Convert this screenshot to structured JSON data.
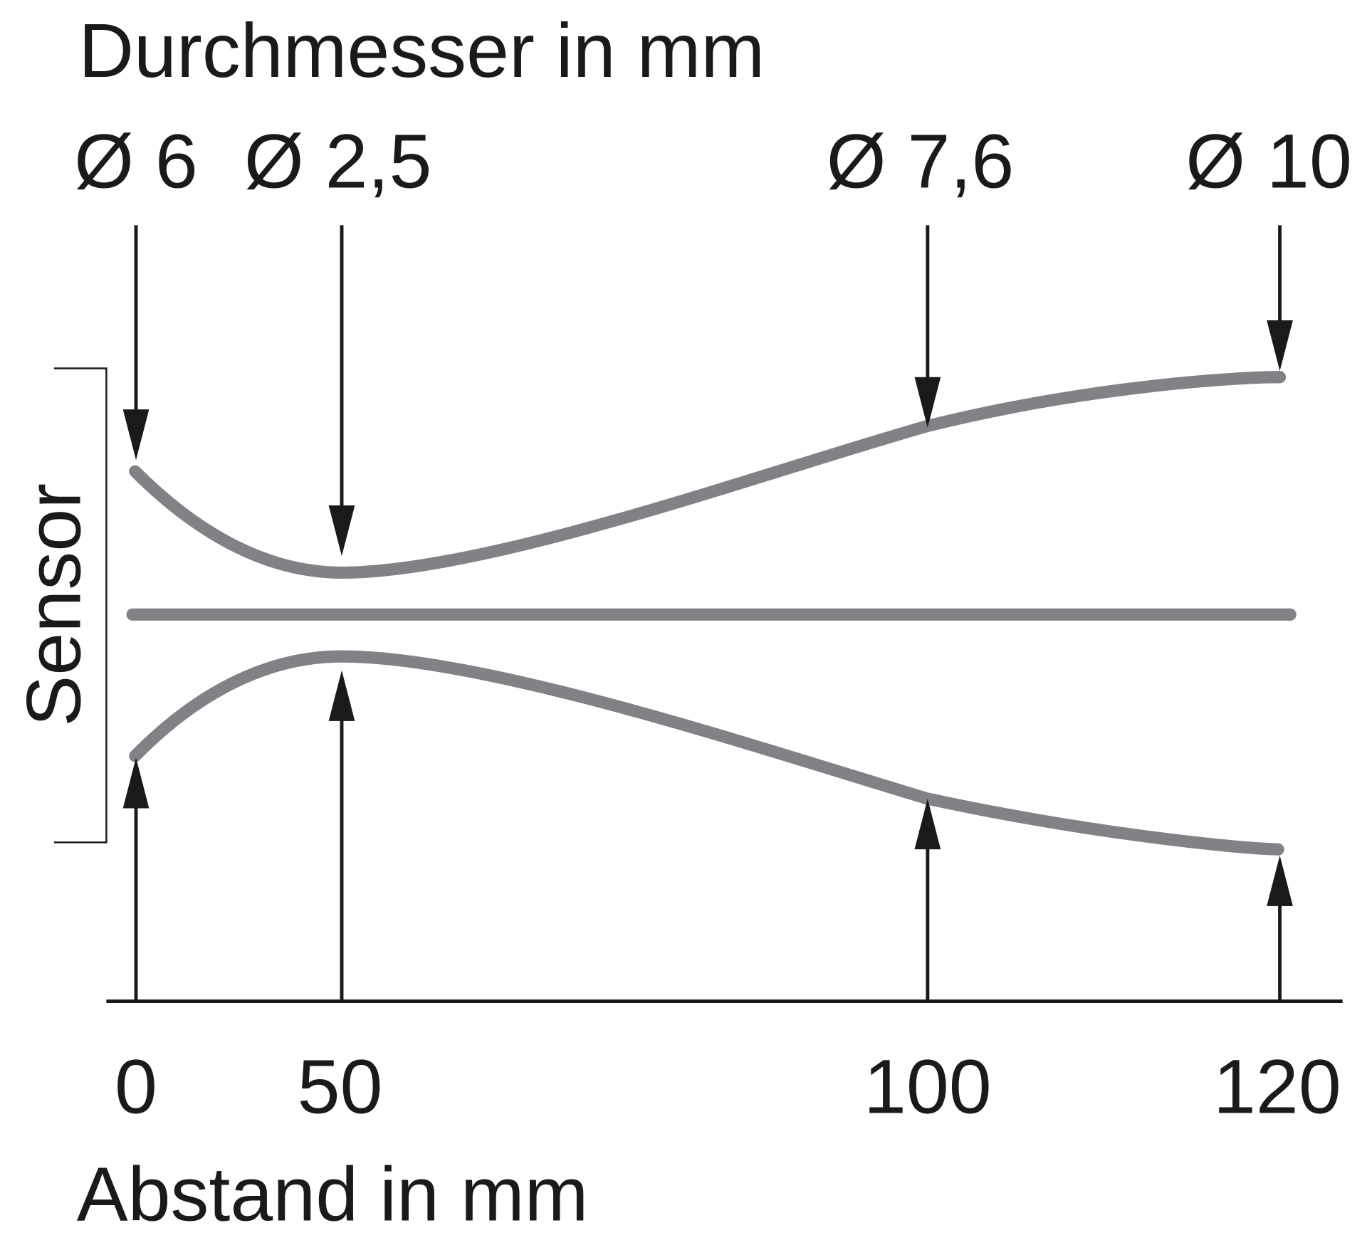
{
  "header": {
    "title": "Durchmesser in mm"
  },
  "diameters": [
    "Ø 6",
    "Ø 2,5",
    "Ø 7,6",
    "Ø 10"
  ],
  "distances": [
    "0",
    "50",
    "100",
    "120"
  ],
  "x_axis_label": "Abstand in mm",
  "sensor_label": "Sensor"
}
